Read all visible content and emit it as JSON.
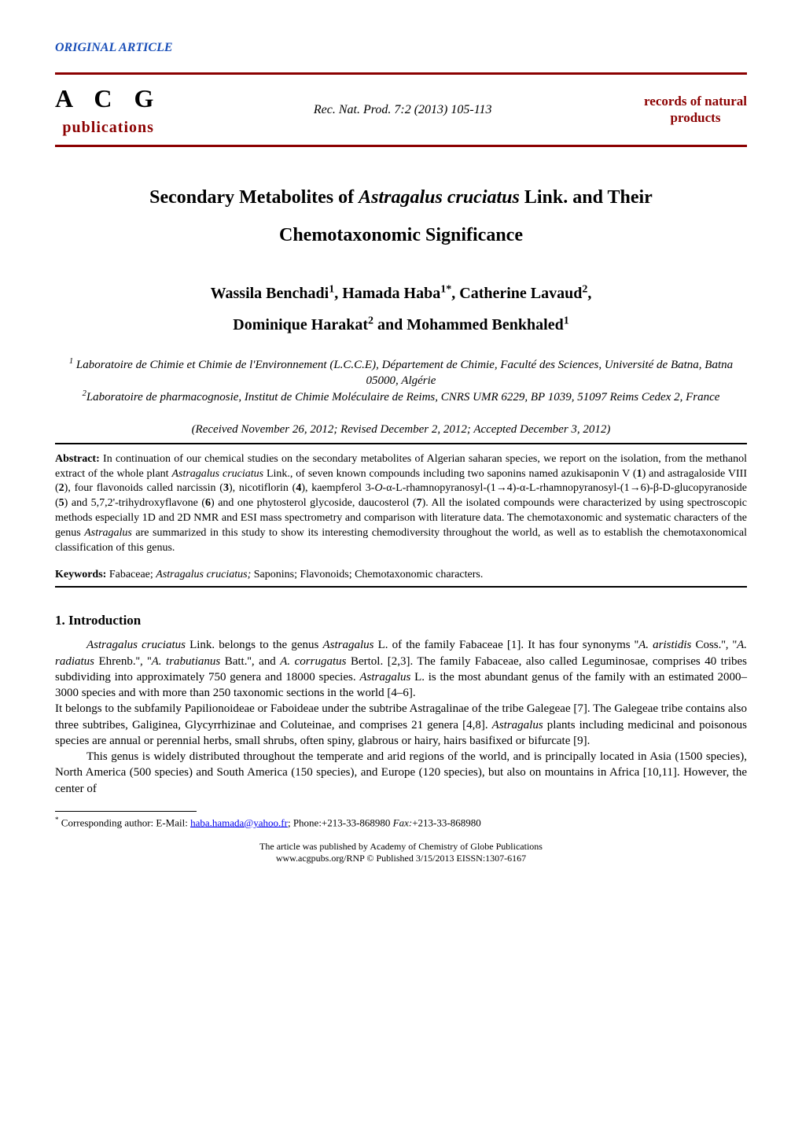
{
  "header": {
    "article_type": "ORIGINAL ARTICLE",
    "logo_top": "A C G",
    "logo_bottom": "publications",
    "journal_ref": "Rec. Nat. Prod. 7:2 (2013) 105-113",
    "records_line1": "records of natural",
    "records_line2": "products"
  },
  "title": {
    "line1_pre": "Secondary Metabolites of ",
    "line1_italic": "Astragalus cruciatus",
    "line1_post": " Link. and Their",
    "line2": "Chemotaxonomic Significance"
  },
  "authors": {
    "a1_name": "Wassila Benchadi",
    "a1_sup": "1",
    "sep1": ", ",
    "a2_name": "Hamada Haba",
    "a2_sup": "1*",
    "sep2": ", ",
    "a3_name": "Catherine Lavaud",
    "a3_sup": "2",
    "sep3": ",",
    "a4_name": "Dominique Harakat",
    "a4_sup": "2",
    "sep4": " and ",
    "a5_name": "Mohammed Benkhaled",
    "a5_sup": "1"
  },
  "affiliations": {
    "aff1_sup": "1",
    "aff1_text": " Laboratoire de Chimie et Chimie de l'Environnement (L.C.C.E), Département de Chimie, Faculté des  Sciences, Université de Batna, Batna 05000, Algérie",
    "aff2_sup": "2",
    "aff2_text": "Laboratoire de pharmacognosie, Institut de Chimie Moléculaire de Reims, CNRS UMR 6229, BP 1039, 51097 Reims Cedex 2, France"
  },
  "received": "(Received November 26, 2012; Revised December 2, 2012; Accepted December 3, 2012)",
  "abstract": {
    "label": "Abstract:  ",
    "pre1": "In continuation of our chemical studies on the secondary metabolites of Algerian saharan species, we report on the isolation, from the methanol extract of the whole plant ",
    "italic1": "Astragalus cruciatus",
    "post1": " Link., of seven known compounds including two saponins named azukisaponin V (",
    "b1": "1",
    "post1b": ") and astragaloside VIII (",
    "b2": "2",
    "post2": "), four flavonoids called narcissin (",
    "b3": "3",
    "post3": "), nicotiflorin (",
    "b4": "4",
    "post4": "), kaempferol 3-",
    "italic_o": "O-",
    "post4b": "α-L-rhamnopyranosyl-(1→4)-α-L-rhamnopyranosyl-(1→6)-β-D-glucopyranoside (",
    "b5": "5",
    "post5": ") and 5,7,2'-trihydroxyflavone (",
    "b6": "6",
    "post6": ") and one phytosterol glycoside, daucosterol (",
    "b7": "7",
    "post7": "). All the isolated compounds were characterized by using spectroscopic methods especially 1D and 2D NMR and ESI mass spectrometry and comparison with literature data. The chemotaxonomic and systematic characters of the genus ",
    "italic2": "Astragalus",
    "post8": " are summarized in this study to show its interesting chemodiversity throughout the world, as well as to establish the chemotaxonomical classification of this genus."
  },
  "keywords": {
    "label": "Keywords: ",
    "pre": "Fabaceae; ",
    "italic": "Astragalus cruciatus;",
    "post": " Saponins; Flavonoids; Chemotaxonomic characters."
  },
  "section1_heading": "1. Introduction",
  "body": {
    "p1_pre": "",
    "p1_italic1": "Astragalus cruciatus",
    "p1_mid1": " Link. belongs to the genus ",
    "p1_italic2": "Astragalus",
    "p1_mid2": " L. of the family Fabaceae [1]. It has four synonyms ''",
    "p1_italic3": "A. aristidis",
    "p1_mid3": " Coss.'', ''",
    "p1_italic4": "A. radiatus",
    "p1_mid4": " Ehrenb.'', ''",
    "p1_italic5": "A. trabutianus",
    "p1_mid5": " Batt.'', and ",
    "p1_italic6": "A. corrugatus",
    "p1_mid6": " Bertol. [2,3]. The family Fabaceae, also called Leguminosae, comprises 40 tribes subdividing into approximately 750 genera and 18000 species. ",
    "p1_italic7": "Astragalus",
    "p1_mid7": " L. is the most abundant genus of the family with an estimated 2000–3000 species and with more than 250 taxonomic sections in the world [4–6].",
    "p2": "It belongs to the subfamily Papilionoideae or Faboideae under the subtribe Astragalinae of the tribe Galegeae [7]. The Galegeae tribe contains also three subtribes, Galiginea, Glycyrrhizinae and Coluteinae, and comprises 21 genera [4,8]. ",
    "p2_italic": "Astragalus",
    "p2_post": " plants including medicinal and poisonous species are annual or perennial herbs, small shrubs, often spiny, glabrous or hairy, hairs basifixed or bifurcate [9].",
    "p3": "This genus is widely distributed throughout the temperate and arid regions of the world, and is principally located in Asia (1500 species), North America (500 species) and South America (150 species), and Europe (120 species), but also on mountains in Africa [10,11]. However, the center of"
  },
  "footnote": {
    "sup": "*",
    "pre": " Corresponding author: E-Mail: ",
    "email": "haba.hamada@yahoo.fr",
    "post_pre": "; Phone:+213-33-868980 ",
    "fax_label": "Fax:",
    "post": "+213-33-868980"
  },
  "footer": {
    "line1": "The article was published by Academy of Chemistry of Globe Publications",
    "line2": "www.acgpubs.org/RNP © Published 3/15/2013 EISSN:1307-6167"
  },
  "colors": {
    "brand_red": "#8b0000",
    "link_blue": "#0000ee",
    "article_type_blue": "#1a4fb8"
  }
}
